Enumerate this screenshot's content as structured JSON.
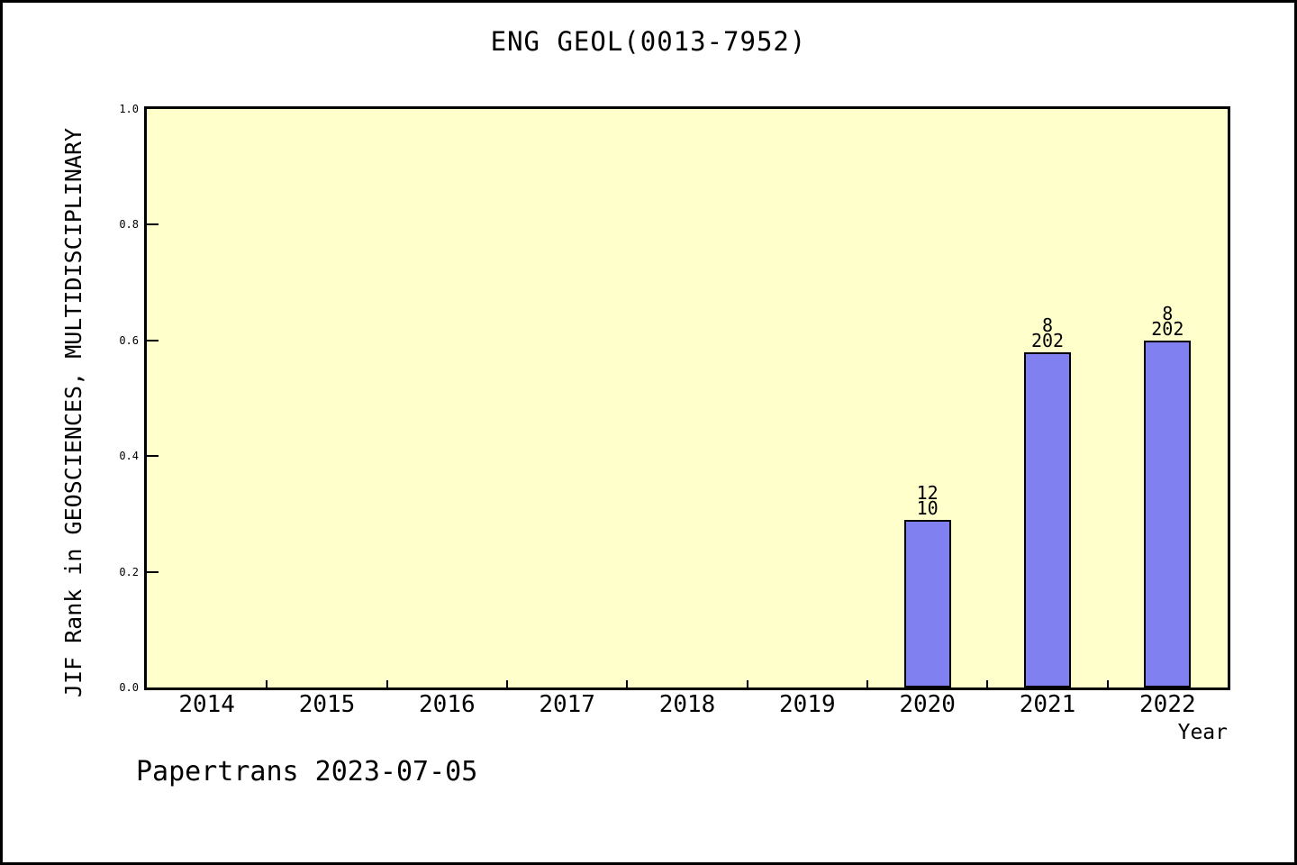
{
  "page": {
    "title": "ENG GEOL(0013-7952)",
    "footer": "Papertrans 2023-07-05"
  },
  "chart_data": {
    "type": "bar",
    "title": "ENG GEOL(0013-7952)",
    "xlabel": "Year",
    "ylabel": "JIF Rank in GEOSCIENCES, MULTIDISCIPLINARY",
    "categories": [
      "2014",
      "2015",
      "2016",
      "2017",
      "2018",
      "2019",
      "2020",
      "2021",
      "2022"
    ],
    "values": [
      null,
      null,
      null,
      null,
      null,
      null,
      0.29,
      0.58,
      0.6
    ],
    "bar_labels": [
      null,
      null,
      null,
      null,
      null,
      null,
      [
        "12",
        "10"
      ],
      [
        "8",
        "202"
      ],
      [
        "8",
        "202"
      ]
    ],
    "ylim": [
      0.0,
      1.0
    ],
    "yticks": [
      "0.0",
      "0.2",
      "0.4",
      "0.6",
      "0.8",
      "1.0"
    ],
    "grid": false,
    "legend_position": "none",
    "colors": {
      "bar_fill": "#8080f0",
      "bar_border": "#000000",
      "plot_background": "#ffffcc",
      "page_background": "#ffffff",
      "text": "#000000"
    }
  }
}
